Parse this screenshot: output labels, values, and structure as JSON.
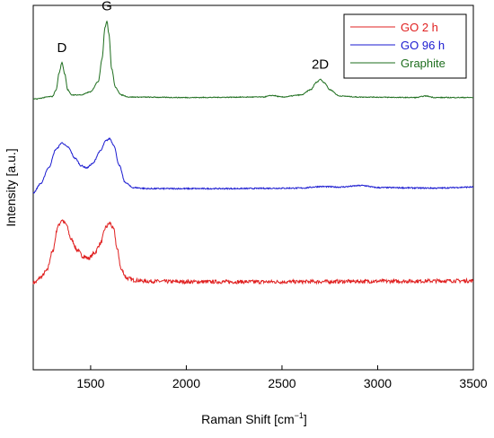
{
  "chart_data": {
    "type": "line",
    "xlabel": "Raman Shift [cm",
    "xlabel_sup": "−1",
    "xlabel_close": "]",
    "ylabel": "Intensity [a.u.]",
    "xlim": [
      1200,
      3500
    ],
    "x_ticks": [
      1500,
      2000,
      2500,
      3000,
      3500
    ],
    "y_ticks_shown": false,
    "grid": false,
    "legend_position": "top-right",
    "annotations": [
      {
        "text": "D",
        "x": 1350
      },
      {
        "text": "G",
        "x": 1585
      },
      {
        "text": "2D",
        "x": 2700
      }
    ],
    "series": [
      {
        "name": "GO 2 h",
        "color": "#e02020",
        "stack_offset": 0,
        "baseline": 1.0,
        "points": [
          [
            1210,
            0.9
          ],
          [
            1240,
            1.4
          ],
          [
            1270,
            2.0
          ],
          [
            1300,
            3.8
          ],
          [
            1330,
            6.3
          ],
          [
            1350,
            6.9
          ],
          [
            1370,
            6.5
          ],
          [
            1400,
            5.0
          ],
          [
            1430,
            4.0
          ],
          [
            1460,
            3.4
          ],
          [
            1490,
            3.2
          ],
          [
            1520,
            3.7
          ],
          [
            1550,
            4.6
          ],
          [
            1580,
            6.2
          ],
          [
            1600,
            6.6
          ],
          [
            1620,
            6.0
          ],
          [
            1640,
            4.0
          ],
          [
            1660,
            2.1
          ],
          [
            1690,
            1.3
          ],
          [
            1730,
            1.1
          ],
          [
            1800,
            1.0
          ],
          [
            2000,
            0.95
          ],
          [
            2500,
            0.95
          ],
          [
            3000,
            1.0
          ],
          [
            3500,
            1.05
          ]
        ],
        "noise": 0.18
      },
      {
        "name": "GO  96 h",
        "color": "#1a1ad0",
        "stack_offset": 9.3,
        "baseline": 0.6,
        "points": [
          [
            1200,
            0.2
          ],
          [
            1240,
            1.1
          ],
          [
            1280,
            2.6
          ],
          [
            1320,
            4.4
          ],
          [
            1350,
            5.0
          ],
          [
            1380,
            4.6
          ],
          [
            1420,
            3.5
          ],
          [
            1450,
            2.8
          ],
          [
            1480,
            2.6
          ],
          [
            1510,
            3.0
          ],
          [
            1550,
            4.2
          ],
          [
            1580,
            5.2
          ],
          [
            1600,
            5.4
          ],
          [
            1620,
            4.8
          ],
          [
            1650,
            2.8
          ],
          [
            1680,
            1.2
          ],
          [
            1720,
            0.7
          ],
          [
            1800,
            0.6
          ],
          [
            2200,
            0.6
          ],
          [
            2600,
            0.65
          ],
          [
            2700,
            0.8
          ],
          [
            2800,
            0.75
          ],
          [
            2920,
            0.9
          ],
          [
            3000,
            0.7
          ],
          [
            3300,
            0.65
          ],
          [
            3500,
            0.75
          ]
        ],
        "noise": 0.06
      },
      {
        "name": "Graphite",
        "color": "#1e6e1e",
        "stack_offset": 18.4,
        "baseline": 0.2,
        "points": [
          [
            1200,
            0.1
          ],
          [
            1300,
            0.35
          ],
          [
            1320,
            1.0
          ],
          [
            1335,
            2.6
          ],
          [
            1350,
            3.6
          ],
          [
            1365,
            2.5
          ],
          [
            1380,
            1.0
          ],
          [
            1400,
            0.5
          ],
          [
            1450,
            0.5
          ],
          [
            1500,
            0.8
          ],
          [
            1540,
            1.8
          ],
          [
            1560,
            4.0
          ],
          [
            1575,
            7.0
          ],
          [
            1585,
            7.6
          ],
          [
            1595,
            6.4
          ],
          [
            1610,
            3.0
          ],
          [
            1630,
            1.2
          ],
          [
            1660,
            0.5
          ],
          [
            1700,
            0.3
          ],
          [
            2000,
            0.25
          ],
          [
            2400,
            0.3
          ],
          [
            2450,
            0.45
          ],
          [
            2500,
            0.3
          ],
          [
            2600,
            0.5
          ],
          [
            2650,
            1.0
          ],
          [
            2680,
            1.7
          ],
          [
            2700,
            2.0
          ],
          [
            2720,
            1.7
          ],
          [
            2750,
            1.0
          ],
          [
            2800,
            0.4
          ],
          [
            2900,
            0.3
          ],
          [
            3200,
            0.25
          ],
          [
            3250,
            0.4
          ],
          [
            3300,
            0.25
          ],
          [
            3500,
            0.25
          ]
        ],
        "noise": 0.04
      }
    ],
    "ylim": [
      -7.5,
      27.5
    ]
  }
}
